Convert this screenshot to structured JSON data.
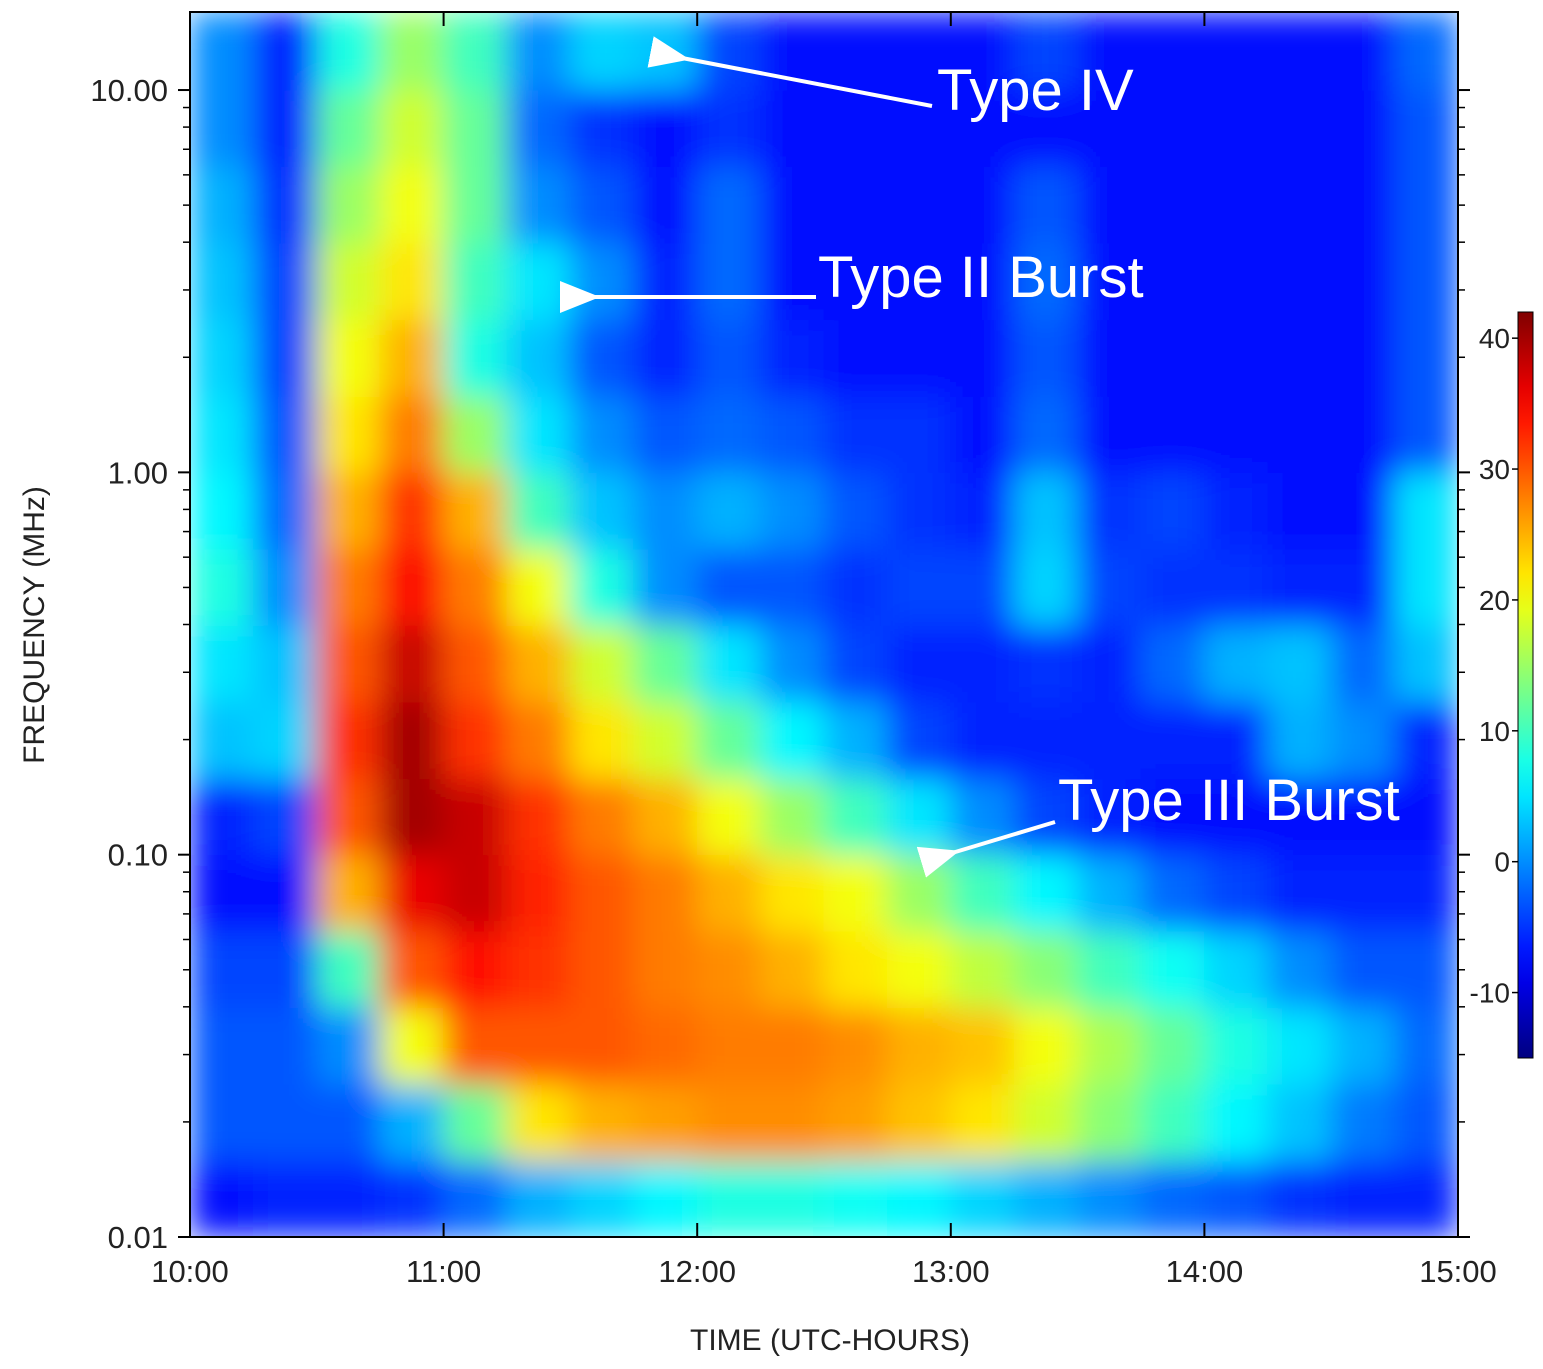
{
  "chart_data": {
    "type": "heatmap",
    "colormap": "jet",
    "x_label": "TIME (UTC-HOURS)",
    "y_label": "FREQUENCY (MHz)",
    "log_y": true,
    "xlim": [
      10,
      15
    ],
    "ylim": [
      0.01,
      16
    ],
    "xticks": [
      {
        "value": 10,
        "label": "10:00"
      },
      {
        "value": 11,
        "label": "11:00"
      },
      {
        "value": 12,
        "label": "12:00"
      },
      {
        "value": 13,
        "label": "13:00"
      },
      {
        "value": 14,
        "label": "14:00"
      },
      {
        "value": 15,
        "label": "15:00"
      }
    ],
    "yticks": [
      {
        "value": 0.01,
        "label": "0.01"
      },
      {
        "value": 0.1,
        "label": "0.10"
      },
      {
        "value": 1,
        "label": "1.00"
      },
      {
        "value": 10,
        "label": "10.00"
      }
    ],
    "clim": [
      -15,
      42
    ],
    "cticks": [
      -10,
      0,
      10,
      20,
      30,
      40
    ],
    "xbins": [
      10,
      10.25,
      10.5,
      10.75,
      11,
      11.25,
      11.5,
      11.75,
      12,
      12.25,
      12.5,
      12.75,
      13,
      13.25,
      13.5,
      13.75,
      14,
      14.25,
      14.5,
      14.75,
      15
    ],
    "ybins": [
      0.01,
      0.0158,
      0.0251,
      0.0398,
      0.0631,
      0.1,
      0.158,
      0.251,
      0.398,
      0.631,
      1,
      1.58,
      2.51,
      3.98,
      6.31,
      10,
      16
    ],
    "z": [
      [
        -7,
        -6,
        -6,
        -5,
        -2,
        2,
        4,
        6,
        8,
        8,
        7,
        6,
        4,
        2,
        0,
        -2,
        -3,
        -5,
        -6,
        -6
      ],
      [
        -3,
        -3,
        -3,
        2,
        12,
        22,
        25,
        26,
        27,
        27,
        26,
        24,
        22,
        18,
        14,
        10,
        6,
        3,
        -1,
        -3
      ],
      [
        -3,
        -3,
        0,
        20,
        30,
        30,
        30,
        29,
        28,
        28,
        27,
        25,
        24,
        20,
        16,
        12,
        8,
        5,
        2,
        -2
      ],
      [
        -4,
        -4,
        10,
        30,
        34,
        32,
        30,
        28,
        27,
        25,
        22,
        20,
        17,
        14,
        10,
        7,
        4,
        0,
        -3,
        -3
      ],
      [
        -7,
        -7,
        25,
        36,
        38,
        33,
        30,
        28,
        25,
        22,
        20,
        15,
        10,
        6,
        2,
        -2,
        -4,
        -6,
        -6,
        -6
      ],
      [
        -6,
        -4,
        30,
        40,
        38,
        32,
        28,
        25,
        20,
        15,
        10,
        5,
        0,
        -4,
        -6,
        -7,
        -7,
        -7,
        -7,
        -7
      ],
      [
        3,
        4,
        32,
        40,
        32,
        28,
        22,
        18,
        12,
        6,
        2,
        -4,
        -6,
        -6,
        -6,
        -6,
        -6,
        2,
        0,
        -6
      ],
      [
        5,
        3,
        30,
        38,
        30,
        25,
        18,
        12,
        5,
        0,
        -4,
        -6,
        -6,
        -5,
        -6,
        -2,
        2,
        3,
        -2,
        3
      ],
      [
        8,
        0,
        28,
        35,
        28,
        20,
        8,
        0,
        -3,
        -3,
        -5,
        -4,
        -4,
        4,
        -4,
        -5,
        -5,
        -6,
        -6,
        5
      ],
      [
        6,
        -2,
        25,
        32,
        25,
        10,
        3,
        0,
        2,
        0,
        -3,
        -5,
        -6,
        3,
        -5,
        -4,
        -6,
        -7,
        -7,
        5
      ],
      [
        5,
        -3,
        22,
        28,
        15,
        5,
        0,
        -3,
        -2,
        -3,
        -5,
        -5,
        -7,
        -2,
        -7,
        -7,
        -7,
        -7,
        -7,
        -3
      ],
      [
        4,
        -4,
        20,
        25,
        8,
        3,
        -3,
        -6,
        -3,
        -6,
        -7,
        -7,
        -7,
        -3,
        -7,
        -7,
        -7,
        -7,
        -7,
        -3
      ],
      [
        3,
        -4,
        18,
        22,
        10,
        5,
        0,
        -6,
        -2,
        -7,
        -7,
        -7,
        -7,
        -2,
        -7,
        -7,
        -7,
        -7,
        -7,
        -3
      ],
      [
        2,
        -5,
        15,
        20,
        12,
        0,
        -3,
        -7,
        -2,
        -7,
        -7,
        -7,
        -7,
        -3,
        -7,
        -7,
        -7,
        -7,
        -7,
        -3
      ],
      [
        0,
        -6,
        12,
        18,
        12,
        -2,
        -5,
        -7,
        -5,
        -7,
        -7,
        -7,
        -7,
        -7,
        -7,
        -7,
        -7,
        -7,
        -7,
        -3
      ],
      [
        0,
        -6,
        8,
        15,
        10,
        0,
        4,
        3,
        -4,
        -7,
        -7,
        -7,
        -7,
        -4,
        -7,
        -7,
        -7,
        -7,
        -7,
        -2
      ]
    ],
    "annotations": [
      "Type IV",
      "Type II Burst",
      "Type III Burst"
    ]
  }
}
